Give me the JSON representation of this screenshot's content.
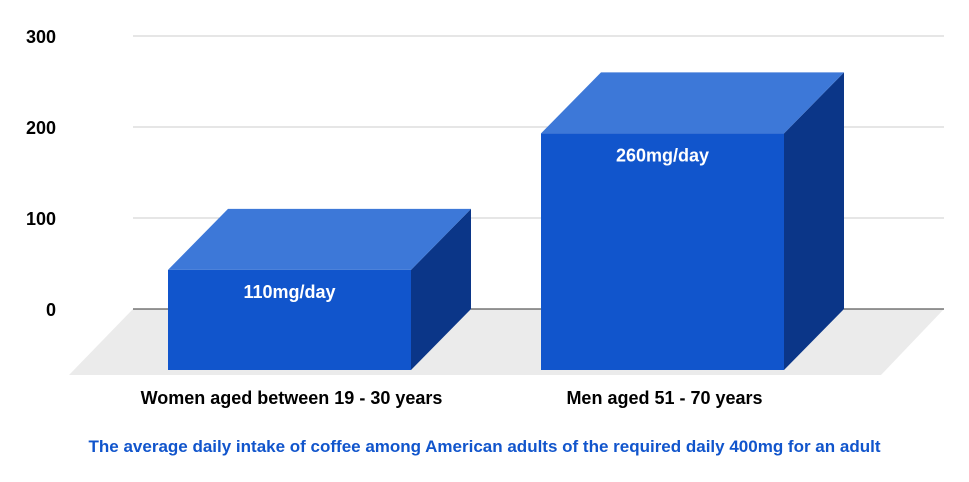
{
  "chart_data": {
    "type": "bar",
    "categories": [
      "Women aged between 19 - 30 years",
      "Men aged 51 - 70 years"
    ],
    "values": [
      110,
      260
    ],
    "data_labels": [
      "110mg/day",
      "260mg/day"
    ],
    "yticks": [
      0,
      100,
      200,
      300
    ],
    "ylim": [
      0,
      300
    ],
    "grid": true,
    "legend": "none",
    "style": "3d"
  },
  "caption": "The average daily intake of coffee among American adults of the required daily 400mg for an adult",
  "colors": {
    "bar_front": "#1155cc",
    "bar_top": "#3d78d8",
    "bar_side": "#0b3688",
    "floor": "#ebebeb",
    "grid": "#cccccc",
    "caption": "#1155cc"
  }
}
